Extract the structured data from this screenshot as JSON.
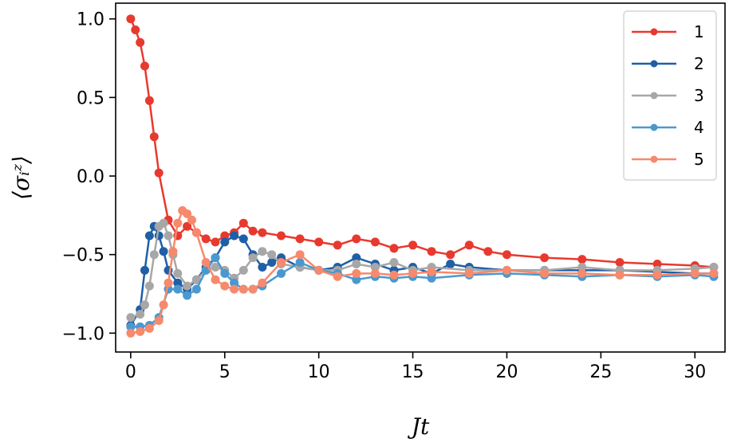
{
  "chart_data": {
    "type": "line",
    "xlabel": "Jt",
    "ylabel": "⟨σᵢᶻ⟩",
    "xlim": [
      -0.8,
      31.6
    ],
    "ylim": [
      -1.12,
      1.1
    ],
    "xticks": [
      0,
      5,
      10,
      15,
      20,
      25,
      30
    ],
    "xtick_labels": [
      "0",
      "5",
      "10",
      "15",
      "20",
      "25",
      "30"
    ],
    "yticks": [
      1.0,
      0.5,
      0.0,
      -0.5,
      -1.0
    ],
    "ytick_labels": [
      "1.0",
      "0.5",
      "0.0",
      "−0.5",
      "−1.0"
    ],
    "grid": false,
    "legend_position": "top-right",
    "series": [
      {
        "name": "1",
        "color": "#e8392f",
        "x": [
          0,
          0.25,
          0.5,
          0.75,
          1.0,
          1.25,
          1.5,
          2,
          2.5,
          3,
          3.5,
          4,
          4.5,
          5,
          5.5,
          6,
          6.5,
          7,
          8,
          9,
          10,
          11,
          12,
          13,
          14,
          15,
          16,
          17,
          18,
          19,
          20,
          22,
          24,
          26,
          28,
          30,
          31
        ],
        "y": [
          1.0,
          0.93,
          0.85,
          0.7,
          0.48,
          0.25,
          0.02,
          -0.28,
          -0.38,
          -0.32,
          -0.36,
          -0.4,
          -0.42,
          -0.38,
          -0.36,
          -0.3,
          -0.35,
          -0.36,
          -0.38,
          -0.4,
          -0.42,
          -0.44,
          -0.4,
          -0.42,
          -0.46,
          -0.44,
          -0.48,
          -0.5,
          -0.44,
          -0.48,
          -0.5,
          -0.52,
          -0.53,
          -0.55,
          -0.56,
          -0.57,
          -0.58
        ]
      },
      {
        "name": "2",
        "color": "#1f5fa6",
        "x": [
          0,
          0.5,
          0.75,
          1.0,
          1.25,
          1.5,
          1.75,
          2,
          2.5,
          3,
          3.5,
          4,
          4.5,
          5,
          5.5,
          6,
          6.5,
          7,
          7.5,
          8,
          9,
          10,
          11,
          12,
          13,
          14,
          15,
          16,
          17,
          18,
          20,
          22,
          24,
          26,
          28,
          30,
          31
        ],
        "y": [
          -0.95,
          -0.85,
          -0.6,
          -0.38,
          -0.32,
          -0.38,
          -0.48,
          -0.6,
          -0.68,
          -0.72,
          -0.66,
          -0.58,
          -0.52,
          -0.42,
          -0.38,
          -0.4,
          -0.5,
          -0.58,
          -0.55,
          -0.52,
          -0.58,
          -0.6,
          -0.58,
          -0.52,
          -0.56,
          -0.6,
          -0.58,
          -0.62,
          -0.56,
          -0.58,
          -0.6,
          -0.6,
          -0.6,
          -0.6,
          -0.61,
          -0.62,
          -0.62
        ]
      },
      {
        "name": "3",
        "color": "#a7a7a7",
        "x": [
          0,
          0.5,
          0.75,
          1.0,
          1.25,
          1.5,
          1.75,
          2,
          2.25,
          2.5,
          3,
          3.5,
          4,
          4.5,
          5,
          5.5,
          6,
          6.5,
          7,
          7.5,
          8,
          9,
          10,
          11,
          12,
          13,
          14,
          15,
          16,
          18,
          20,
          22,
          24,
          26,
          28,
          30,
          31
        ],
        "y": [
          -0.9,
          -0.88,
          -0.82,
          -0.7,
          -0.5,
          -0.32,
          -0.3,
          -0.38,
          -0.5,
          -0.62,
          -0.7,
          -0.66,
          -0.6,
          -0.58,
          -0.6,
          -0.65,
          -0.6,
          -0.52,
          -0.48,
          -0.5,
          -0.56,
          -0.58,
          -0.6,
          -0.6,
          -0.56,
          -0.58,
          -0.55,
          -0.6,
          -0.58,
          -0.6,
          -0.6,
          -0.6,
          -0.58,
          -0.6,
          -0.6,
          -0.59,
          -0.58
        ]
      },
      {
        "name": "4",
        "color": "#4b98cf",
        "x": [
          0,
          0.5,
          1.0,
          1.5,
          2,
          2.5,
          3,
          3.5,
          4,
          4.5,
          5,
          5.5,
          6,
          6.5,
          7,
          8,
          9,
          10,
          11,
          12,
          13,
          14,
          15,
          16,
          18,
          20,
          22,
          24,
          26,
          28,
          30,
          31
        ],
        "y": [
          -0.96,
          -0.96,
          -0.95,
          -0.9,
          -0.72,
          -0.72,
          -0.76,
          -0.72,
          -0.6,
          -0.52,
          -0.62,
          -0.68,
          -0.72,
          -0.72,
          -0.7,
          -0.62,
          -0.55,
          -0.6,
          -0.62,
          -0.66,
          -0.64,
          -0.65,
          -0.64,
          -0.65,
          -0.63,
          -0.62,
          -0.63,
          -0.64,
          -0.63,
          -0.64,
          -0.63,
          -0.64
        ]
      },
      {
        "name": "5",
        "color": "#f7896c",
        "x": [
          0,
          0.5,
          1.0,
          1.5,
          1.75,
          2,
          2.25,
          2.5,
          2.75,
          3,
          3.25,
          3.5,
          4,
          4.5,
          5,
          5.5,
          6,
          6.5,
          7,
          8,
          9,
          10,
          11,
          12,
          13,
          14,
          15,
          16,
          18,
          20,
          22,
          24,
          26,
          28,
          30,
          31
        ],
        "y": [
          -1.0,
          -0.99,
          -0.97,
          -0.92,
          -0.82,
          -0.68,
          -0.48,
          -0.3,
          -0.22,
          -0.24,
          -0.28,
          -0.36,
          -0.55,
          -0.66,
          -0.7,
          -0.72,
          -0.72,
          -0.72,
          -0.68,
          -0.55,
          -0.5,
          -0.6,
          -0.64,
          -0.62,
          -0.62,
          -0.63,
          -0.62,
          -0.61,
          -0.62,
          -0.6,
          -0.62,
          -0.62,
          -0.63,
          -0.63,
          -0.62,
          -0.62
        ]
      }
    ]
  }
}
